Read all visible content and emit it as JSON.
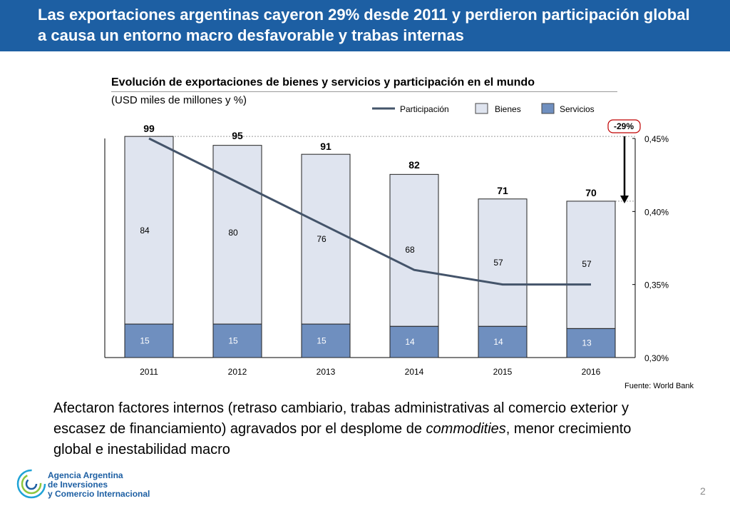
{
  "header": {
    "title_line1": "Las exportaciones argentinas cayeron 29% desde 2011 y perdieron participación global",
    "title_line2": "a causa un entorno macro desfavorable y trabas internas"
  },
  "chart_data": {
    "type": "bar",
    "title": "Evolución de exportaciones de bienes y servicios y participación en el mundo",
    "subtitle": "(USD miles de millones y %)",
    "categories": [
      "2011",
      "2012",
      "2013",
      "2014",
      "2015",
      "2016"
    ],
    "series": [
      {
        "name": "Servicios",
        "type": "bar",
        "stack": "exports",
        "values": [
          15,
          15,
          15,
          14,
          14,
          13
        ],
        "color": "#6f8fbf"
      },
      {
        "name": "Bienes",
        "type": "bar",
        "stack": "exports",
        "values": [
          84,
          80,
          76,
          68,
          57,
          57
        ],
        "color": "#dfe4ef"
      },
      {
        "name": "Participación",
        "type": "line",
        "axis": "right",
        "values": [
          0.45,
          0.42,
          0.39,
          0.36,
          0.35,
          0.35
        ],
        "color": "#44546a"
      }
    ],
    "totals": [
      "99",
      "95",
      "91",
      "82",
      "71",
      "70"
    ],
    "legend": [
      "Participación",
      "Bienes",
      "Servicios"
    ],
    "legend_position": "top-right",
    "y_left": {
      "min": 0,
      "max": 100
    },
    "y_right": {
      "min": 0.3,
      "max": 0.45,
      "ticks": [
        "0,30%",
        "0,35%",
        "0,40%",
        "0,45%"
      ]
    },
    "annotation": "-29%"
  },
  "footer": {
    "source": "Fuente: World Bank",
    "body_before": "Afectaron factores internos (retraso cambiario, trabas administrativas al comercio exterior y escasez de financiamiento) agravados por el desplome de ",
    "body_italic": "commodities",
    "body_after": ", menor crecimiento global e inestabilidad macro",
    "logo_line1": "Agencia Argentina",
    "logo_line2": "de Inversiones",
    "logo_line3": "y Comercio Internacional",
    "page_number": "2"
  },
  "colors": {
    "brand_blue": "#1d5fa3"
  }
}
